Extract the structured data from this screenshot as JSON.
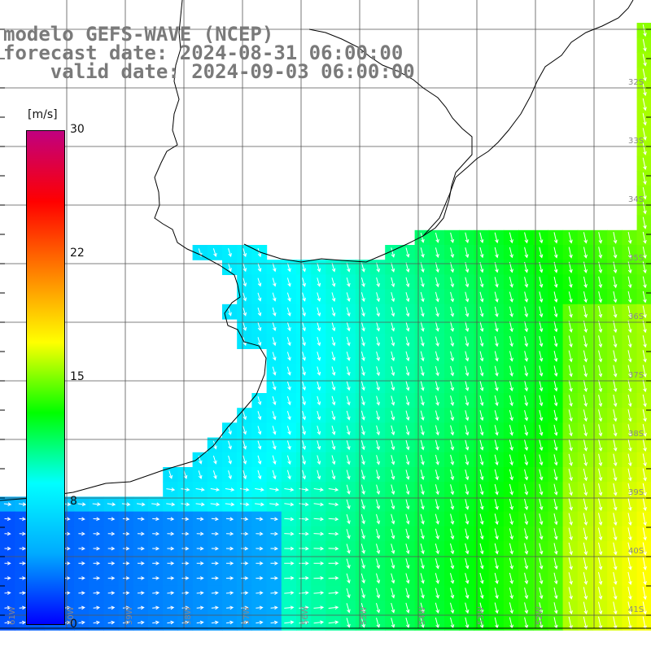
{
  "title": {
    "line1": "modelo GEFS-WAVE (NCEP)",
    "line2": "forecast date: 2024-08-31 06:00:00",
    "line3": "    valid date: 2024-09-03 06:00:00"
  },
  "colorbar": {
    "unit": "[m/s]",
    "ticks": [
      "30",
      "22",
      "15",
      "8",
      "0"
    ],
    "min": 0,
    "max": 30,
    "colors": [
      "#0000ff",
      "#00aaff",
      "#00ffff",
      "#00ff00",
      "#ffff00",
      "#ff8000",
      "#ff0000",
      "#c00080"
    ]
  },
  "map": {
    "latitude_labels": [
      "32S",
      "33S",
      "34S",
      "35S",
      "36S",
      "37S",
      "38S",
      "39S",
      "40S",
      "41S"
    ],
    "longitude_labels": [
      "61W",
      "60W",
      "59W",
      "58W",
      "57W",
      "56W",
      "55W",
      "54W",
      "53W",
      "52W"
    ],
    "colors": {
      "land": "#ffffff",
      "grid": "#555555",
      "coast": "#000000",
      "arrow": "#ffffff"
    }
  }
}
